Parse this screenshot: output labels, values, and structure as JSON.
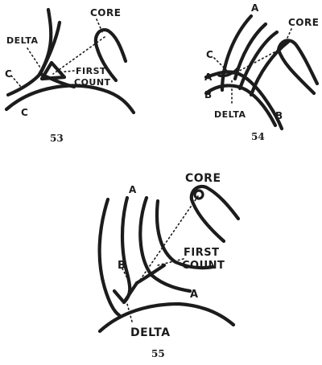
{
  "figures": [
    {
      "number": "53",
      "labels": {
        "core": "CORE",
        "delta": "DELTA",
        "first_count_line1": "FIRST",
        "first_count_line2": "COUNT",
        "c_upper": "C",
        "c_lower": "C"
      }
    },
    {
      "number": "54",
      "labels": {
        "a_top": "A",
        "core": "CORE",
        "c": "C",
        "a_left": "A",
        "b_left": "B",
        "delta": "DELTA",
        "b_right": "B"
      }
    },
    {
      "number": "55",
      "labels": {
        "core": "CORE",
        "a_top": "A",
        "first_count_line1": "FIRST",
        "first_count_line2": "COUNT",
        "b": "B",
        "a_right": "A",
        "delta": "DELTA"
      }
    }
  ],
  "colors": {
    "ink": "#1c1c1c",
    "paper": "#ffffff"
  }
}
